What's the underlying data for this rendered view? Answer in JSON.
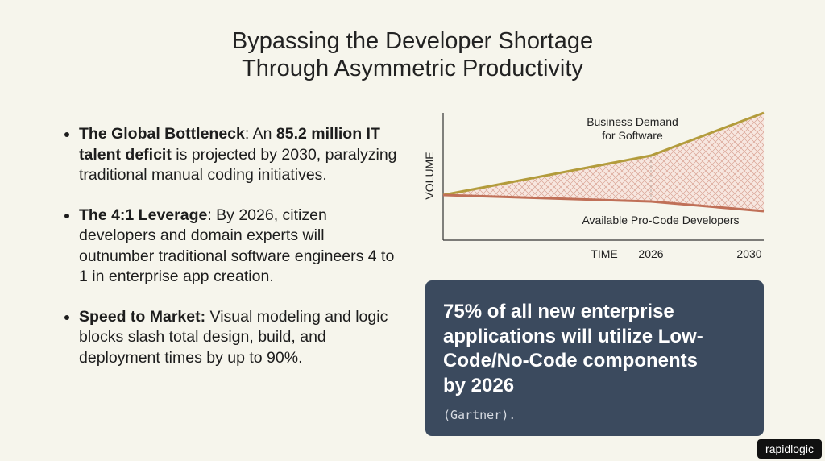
{
  "header": {
    "title_lines": [
      "Bypassing the Developer Shortage",
      "Through Asymmetric Productivity"
    ]
  },
  "bullets": [
    [
      "The Global Bottleneck",
      ": An ",
      "85.2 million IT talent deficit",
      " is projected by 2030, paralyzing traditional manual coding initiatives."
    ],
    [
      "The 4:1 Leverage",
      ": By 2026, citizen developers and domain experts will outnumber traditional software engineers 4 to 1 in enterprise app creation."
    ],
    [
      "Speed to Market:",
      " Visual modeling and logic blocks slash total design, build, and deployment times by up to 90%."
    ]
  ],
  "diagram": {
    "y_label": "VOLUME",
    "x_label": "TIME",
    "x_marks": [
      "2026",
      "2030"
    ],
    "demand_label": [
      "Business Demand",
      "for Software"
    ],
    "supply_label": "Available Pro-Code Developers"
  },
  "callout": {
    "text": "75% of all new enterprise applications will utilize Low-Code/No-Code components by 2026",
    "source": "(Gartner)."
  },
  "logo": "rapidlogic"
}
